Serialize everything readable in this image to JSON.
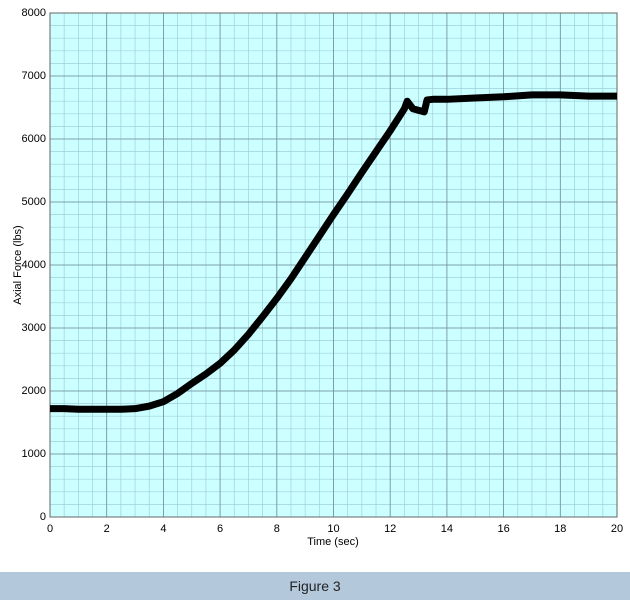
{
  "chart_data": {
    "type": "line",
    "x_label": "Time (sec)",
    "y_label": "Axial Force (lbs)",
    "x": [
      0,
      0.5,
      1,
      1.5,
      2,
      2.5,
      3,
      3.5,
      4,
      4.5,
      5,
      5.5,
      6,
      6.5,
      7,
      7.5,
      8,
      8.5,
      9,
      9.5,
      10,
      10.5,
      11,
      11.5,
      12,
      12.5,
      12.6,
      12.8,
      13.2,
      13.3,
      13.5,
      14,
      15,
      16,
      17,
      18,
      19,
      20
    ],
    "series": [
      {
        "color": "#000000",
        "values": [
          1720,
          1720,
          1710,
          1710,
          1710,
          1710,
          1720,
          1760,
          1830,
          1960,
          2120,
          2270,
          2440,
          2650,
          2900,
          3180,
          3470,
          3780,
          4120,
          4460,
          4800,
          5130,
          5470,
          5800,
          6130,
          6480,
          6600,
          6480,
          6430,
          6620,
          6630,
          6630,
          6650,
          6670,
          6700,
          6700,
          6680,
          6680
        ]
      }
    ],
    "xlim": [
      0,
      20
    ],
    "ylim": [
      0,
      8000
    ],
    "xticks": [
      0,
      2,
      4,
      6,
      8,
      10,
      12,
      14,
      16,
      18,
      20
    ],
    "yticks": [
      0,
      1000,
      2000,
      3000,
      4000,
      5000,
      6000,
      7000,
      8000
    ],
    "grid": true,
    "minor_grid_step": [
      0.5,
      200
    ],
    "background": "#ccffff"
  },
  "caption": "Figure 3"
}
